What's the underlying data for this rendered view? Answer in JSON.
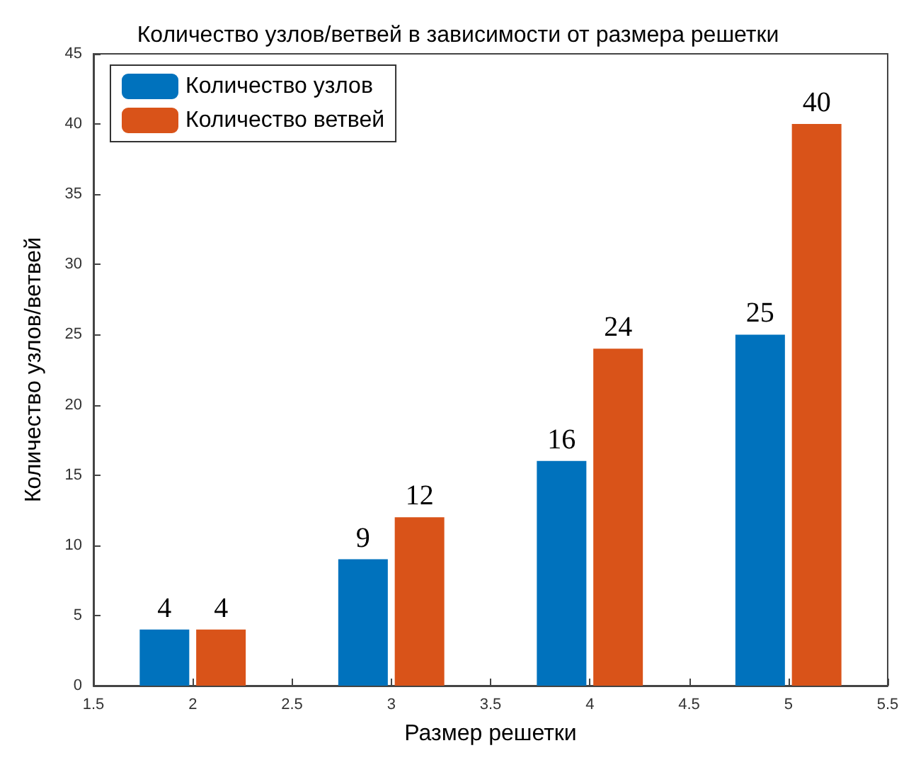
{
  "chart_data": {
    "type": "bar",
    "title": "Количество узлов/ветвей в зависимости от размера решетки",
    "xlabel": "Размер решетки",
    "ylabel": "Количество узлов/ветвей",
    "x": [
      2,
      3,
      4,
      5
    ],
    "series": [
      {
        "name": "Количество узлов",
        "color": "#0072bd",
        "values": [
          4,
          9,
          16,
          25
        ]
      },
      {
        "name": "Количество ветвей",
        "color": "#d95319",
        "values": [
          4,
          12,
          24,
          40
        ]
      }
    ],
    "xlim": [
      1.5,
      5.5
    ],
    "xticks": [
      1.5,
      2,
      2.5,
      3,
      3.5,
      4,
      4.5,
      5,
      5.5
    ],
    "ylim": [
      0,
      45
    ],
    "yticks": [
      0,
      5,
      10,
      15,
      20,
      25,
      30,
      35,
      40,
      45
    ],
    "data_labels": true,
    "legend": "top left"
  }
}
